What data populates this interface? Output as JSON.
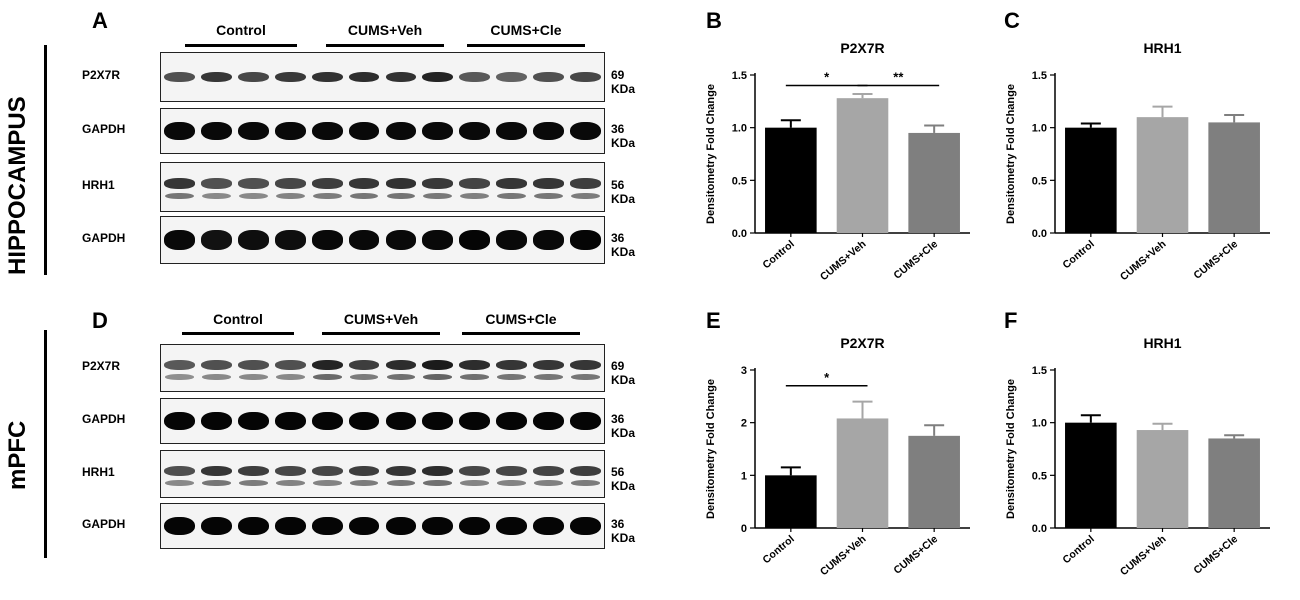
{
  "regions": {
    "hippocampus": "HIPPOCAMPUS",
    "mpfc": "mPFC"
  },
  "panel_letters": {
    "A": "A",
    "B": "B",
    "C": "C",
    "D": "D",
    "E": "E",
    "F": "F"
  },
  "groups": [
    "Control",
    "CUMS+Veh",
    "CUMS+Cle"
  ],
  "blots_top": [
    {
      "name": "P2X7R",
      "kda": "69 KDa",
      "intensity": [
        0.55,
        0.7,
        0.6,
        0.68,
        0.72,
        0.75,
        0.72,
        0.8,
        0.5,
        0.45,
        0.55,
        0.6
      ],
      "second_band": false
    },
    {
      "name": "GAPDH",
      "kda": "36 KDa",
      "intensity": [
        0.95,
        0.95,
        0.95,
        0.95,
        0.95,
        0.95,
        0.95,
        0.95,
        0.95,
        0.95,
        0.95,
        0.95
      ],
      "second_band": false
    },
    {
      "name": "HRH1",
      "kda": "56 KDa",
      "intensity": [
        0.7,
        0.55,
        0.55,
        0.6,
        0.65,
        0.7,
        0.72,
        0.68,
        0.62,
        0.7,
        0.7,
        0.65
      ],
      "second_band": true
    },
    {
      "name": "GAPDH",
      "kda": "36 KDa",
      "intensity": [
        0.95,
        0.9,
        0.92,
        0.92,
        0.95,
        0.95,
        0.95,
        0.95,
        0.97,
        0.95,
        0.95,
        0.97
      ],
      "second_band": false
    }
  ],
  "blots_bottom": [
    {
      "name": "P2X7R",
      "kda": "69 KDa",
      "intensity": [
        0.5,
        0.55,
        0.55,
        0.55,
        0.8,
        0.65,
        0.75,
        0.85,
        0.75,
        0.7,
        0.7,
        0.7
      ],
      "second_band": true
    },
    {
      "name": "GAPDH",
      "kda": "36 KDa",
      "intensity": [
        0.97,
        0.97,
        0.97,
        0.97,
        0.97,
        0.97,
        0.97,
        0.97,
        0.97,
        0.97,
        0.97,
        0.97
      ],
      "second_band": false
    },
    {
      "name": "HRH1",
      "kda": "56 KDa",
      "intensity": [
        0.55,
        0.7,
        0.65,
        0.6,
        0.6,
        0.65,
        0.7,
        0.75,
        0.6,
        0.6,
        0.62,
        0.65
      ],
      "second_band": true
    },
    {
      "name": "GAPDH",
      "kda": "36 KDa",
      "intensity": [
        0.97,
        0.97,
        0.97,
        0.97,
        0.97,
        0.97,
        0.97,
        0.97,
        0.97,
        0.97,
        0.97,
        0.97
      ],
      "second_band": false
    }
  ],
  "colors": {
    "control": "#000000",
    "veh": "#a6a6a6",
    "cle": "#7f7f7f"
  },
  "chart_data": [
    {
      "panel": "B",
      "type": "bar",
      "title": "P2X7R",
      "ylabel": "Densitometry Fold Change",
      "categories": [
        "Control",
        "CUMS+Veh",
        "CUMS+Cle"
      ],
      "values": [
        1.0,
        1.28,
        0.95
      ],
      "errors": [
        0.07,
        0.04,
        0.07
      ],
      "ylim": [
        0,
        1.5
      ],
      "yticks": [
        "0.0",
        "0.5",
        "1.0",
        "1.5"
      ],
      "annotations": [
        {
          "from": 0,
          "to": 1,
          "y": 1.4,
          "label": "*"
        },
        {
          "from": 1,
          "to": 2,
          "y": 1.4,
          "label": "**"
        }
      ]
    },
    {
      "panel": "C",
      "type": "bar",
      "title": "HRH1",
      "ylabel": "Densitometry Fold Change",
      "categories": [
        "Control",
        "CUMS+Veh",
        "CUMS+Cle"
      ],
      "values": [
        1.0,
        1.1,
        1.05
      ],
      "errors": [
        0.04,
        0.1,
        0.07
      ],
      "ylim": [
        0,
        1.5
      ],
      "yticks": [
        "0.0",
        "0.5",
        "1.0",
        "1.5"
      ],
      "annotations": []
    },
    {
      "panel": "E",
      "type": "bar",
      "title": "P2X7R",
      "ylabel": "Densitometry Fold Change",
      "categories": [
        "Control",
        "CUMS+Veh",
        "CUMS+Cle"
      ],
      "values": [
        1.0,
        2.08,
        1.75
      ],
      "errors": [
        0.15,
        0.32,
        0.2
      ],
      "ylim": [
        0,
        3
      ],
      "yticks": [
        "0",
        "1",
        "2",
        "3"
      ],
      "annotations": [
        {
          "from": 0,
          "to": 1,
          "y": 2.7,
          "label": "*"
        }
      ]
    },
    {
      "panel": "F",
      "type": "bar",
      "title": "HRH1",
      "ylabel": "Densitometry Fold Change",
      "categories": [
        "Control",
        "CUMS+Veh",
        "CUMS+Cle"
      ],
      "values": [
        1.0,
        0.93,
        0.85
      ],
      "errors": [
        0.07,
        0.06,
        0.03
      ],
      "ylim": [
        0,
        1.5
      ],
      "yticks": [
        "0.0",
        "0.5",
        "1.0",
        "1.5"
      ],
      "annotations": []
    }
  ]
}
